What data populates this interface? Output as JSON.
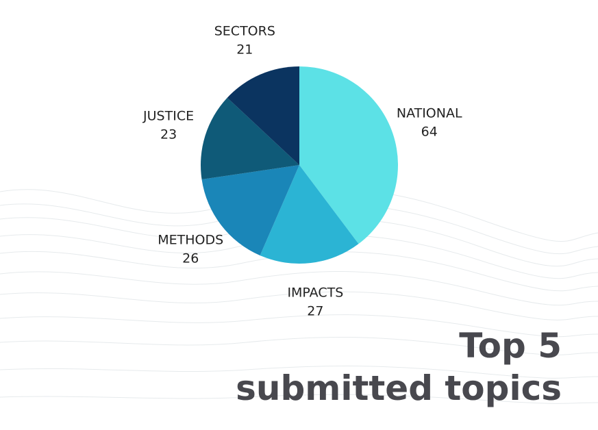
{
  "chart_data": {
    "type": "pie",
    "title": "Top 5",
    "subtitle": "submitted topics",
    "categories": [
      "NATIONAL",
      "IMPACTS",
      "METHODS",
      "JUSTICE",
      "SECTORS"
    ],
    "values": [
      64,
      27,
      26,
      23,
      21
    ],
    "colors": [
      "#5ce1e6",
      "#2bb4d4",
      "#1a86b8",
      "#0f5a78",
      "#0b3460"
    ]
  }
}
